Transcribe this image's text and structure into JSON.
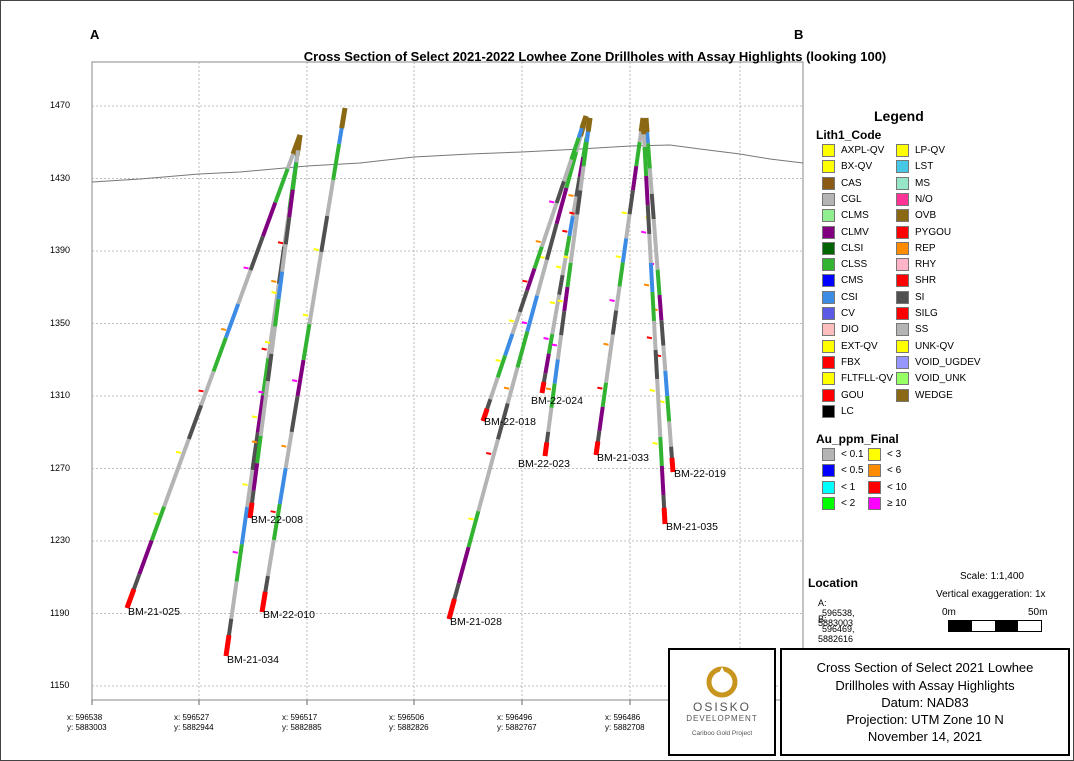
{
  "title": "Cross Section of Select 2021-2022 Lowhee Zone Drillholes with Assay Highlights (looking 100)",
  "corners": {
    "a": "A",
    "b": "B"
  },
  "elevation_ticks": [
    "1470",
    "1430",
    "1390",
    "1350",
    "1310",
    "1270",
    "1230",
    "1190",
    "1150"
  ],
  "x_ticks": [
    {
      "x": "x: 596538",
      "y": "y: 5883003"
    },
    {
      "x": "x: 596527",
      "y": "y: 5882944"
    },
    {
      "x": "x: 596517",
      "y": "y: 5882885"
    },
    {
      "x": "x: 596506",
      "y": "y: 5882826"
    },
    {
      "x": "x: 596496",
      "y": "y: 5882767"
    },
    {
      "x": "x: 596486",
      "y": "y: 5882708"
    }
  ],
  "drillholes": [
    {
      "id": "BM-21-025",
      "collar_elev": 1454,
      "end_elev": 1191
    },
    {
      "id": "BM-21-034",
      "collar_elev": 1454,
      "end_elev": 1166
    },
    {
      "id": "BM-22-008",
      "collar_elev": 1454,
      "end_elev": 1245
    },
    {
      "id": "BM-22-010",
      "collar_elev": 1467,
      "end_elev": 1190
    },
    {
      "id": "BM-21-028",
      "collar_elev": 1464,
      "end_elev": 1186
    },
    {
      "id": "BM-22-018",
      "collar_elev": 1464,
      "end_elev": 1298
    },
    {
      "id": "BM-22-024",
      "collar_elev": 1464,
      "end_elev": 1313
    },
    {
      "id": "BM-22-023",
      "collar_elev": 1464,
      "end_elev": 1278
    },
    {
      "id": "BM-21-033",
      "collar_elev": 1464,
      "end_elev": 1278
    },
    {
      "id": "BM-22-019",
      "collar_elev": 1464,
      "end_elev": 1272
    },
    {
      "id": "BM-21-035",
      "collar_elev": 1464,
      "end_elev": 1240
    }
  ],
  "legend": {
    "title": "Legend",
    "lith_heading": "Lith1_Code",
    "lith_left": [
      {
        "label": "AXPL-QV",
        "color": "#ffff00"
      },
      {
        "label": "BX-QV",
        "color": "#ffff00"
      },
      {
        "label": "CAS",
        "color": "#8b5a14"
      },
      {
        "label": "CGL",
        "color": "#b4b4b4"
      },
      {
        "label": "CLMS",
        "color": "#90ee90"
      },
      {
        "label": "CLMV",
        "color": "#800080"
      },
      {
        "label": "CLSI",
        "color": "#006400"
      },
      {
        "label": "CLSS",
        "color": "#32b432"
      },
      {
        "label": "CMS",
        "color": "#0000ff"
      },
      {
        "label": "CSI",
        "color": "#3c8ce6"
      },
      {
        "label": "CV",
        "color": "#5a5ae6"
      },
      {
        "label": "DIO",
        "color": "#ffbebe"
      },
      {
        "label": "EXT-QV",
        "color": "#ffff00"
      },
      {
        "label": "FBX",
        "color": "#ff0000"
      },
      {
        "label": "FLTFLL-QV",
        "color": "#ffff00"
      },
      {
        "label": "GOU",
        "color": "#ff0000"
      },
      {
        "label": "LC",
        "color": "#000000"
      }
    ],
    "lith_right": [
      {
        "label": "LP-QV",
        "color": "#ffff00"
      },
      {
        "label": "LST",
        "color": "#46c8e6"
      },
      {
        "label": "MS",
        "color": "#96e6c8"
      },
      {
        "label": "N/O",
        "color": "#ff3296"
      },
      {
        "label": "OVB",
        "color": "#8b6914"
      },
      {
        "label": "PYGOU",
        "color": "#ff0000"
      },
      {
        "label": "REP",
        "color": "#ff8c00"
      },
      {
        "label": "RHY",
        "color": "#ffb4c8"
      },
      {
        "label": "SHR",
        "color": "#ff0000"
      },
      {
        "label": "SI",
        "color": "#505050"
      },
      {
        "label": "SILG",
        "color": "#ff0000"
      },
      {
        "label": "SS",
        "color": "#b4b4b4"
      },
      {
        "label": "UNK-QV",
        "color": "#ffff00"
      },
      {
        "label": "VOID_UGDEV",
        "color": "#9696ff"
      },
      {
        "label": "VOID_UNK",
        "color": "#96ff64"
      },
      {
        "label": "WEDGE",
        "color": "#8b6914"
      }
    ],
    "au_heading": "Au_ppm_Final",
    "au_left": [
      {
        "label": "< 0.1",
        "color": "#b4b4b4"
      },
      {
        "label": "< 0.5",
        "color": "#0000ff"
      },
      {
        "label": "< 1",
        "color": "#00ffff"
      },
      {
        "label": "< 2",
        "color": "#00ff00"
      }
    ],
    "au_right": [
      {
        "label": "< 3",
        "color": "#ffff00"
      },
      {
        "label": "< 6",
        "color": "#ff8c00"
      },
      {
        "label": "< 10",
        "color": "#ff0000"
      },
      {
        "label": "≥ 10",
        "color": "#ff00ff"
      }
    ]
  },
  "location": {
    "title": "Location",
    "a_label": "A:",
    "a_value": "596538, 5883003",
    "b_label": "B:",
    "b_value": "596469, 5882616"
  },
  "scale": {
    "label": "Scale: 1:1,400",
    "vertical_exaggeration": "Vertical exaggeration: 1x",
    "start": "0m",
    "end": "50m"
  },
  "logo": {
    "name": "OSISKO",
    "sub": "DEVELOPMENT",
    "project": "Cariboo Gold Project",
    "color": "#c8961e"
  },
  "info": {
    "line1": "Cross Section of Select 2021 Lowhee",
    "line2": "Drillholes with Assay Highlights",
    "line3": "Datum: NAD83",
    "line4": "Projection: UTM  Zone 10 N",
    "line5": "November 14, 2021"
  }
}
